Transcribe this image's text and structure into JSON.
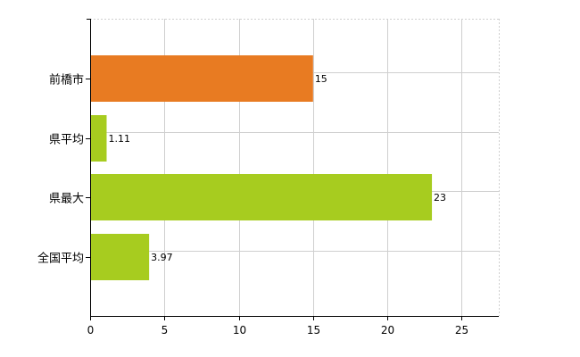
{
  "chart_data": {
    "type": "bar",
    "orientation": "horizontal",
    "categories": [
      "前橋市",
      "県平均",
      "県最大",
      "全国平均"
    ],
    "values": [
      15,
      1.11,
      23,
      3.97
    ],
    "value_labels": [
      "15",
      "1.11",
      "23",
      "3.97"
    ],
    "bar_colors": [
      "#e87b22",
      "#a7cc1f",
      "#a7cc1f",
      "#a7cc1f"
    ],
    "title": "",
    "xlabel": "",
    "ylabel": "",
    "xlim": [
      0,
      27.5
    ],
    "xticks": [
      0,
      5,
      10,
      15,
      20,
      25
    ],
    "grid": true,
    "legend": "none"
  }
}
